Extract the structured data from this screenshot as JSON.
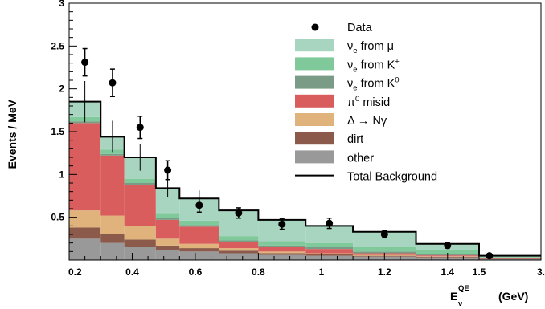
{
  "chart_data": {
    "type": "bar",
    "stacked": true,
    "xlabel": "E",
    "xlabel_sub": "ν",
    "xlabel_sup": "QE",
    "xlabel_unit": "(GeV)",
    "ylabel": "Events / MeV",
    "xlim": [
      0.2,
      3.0
    ],
    "ylim": [
      0,
      3
    ],
    "grid": false,
    "legend_position": "top-right",
    "bin_edges": [
      0.2,
      0.3,
      0.375,
      0.475,
      0.55,
      0.675,
      0.8,
      0.95,
      1.1,
      1.3,
      1.5,
      3.0
    ],
    "x_tick_values": [
      0.2,
      0.4,
      0.6,
      0.8,
      1.0,
      1.2,
      1.4,
      1.5,
      3.0
    ],
    "x_tick_labels": [
      "0.2",
      "0.4",
      "0.6",
      "0.8",
      "1",
      "1.2",
      "1.4",
      "1.5",
      "3."
    ],
    "y_tick_values": [
      0.5,
      1,
      1.5,
      2,
      2.5,
      3
    ],
    "y_tick_labels": [
      "0.5",
      "1",
      "1.5",
      "2",
      "2.5",
      "3"
    ],
    "series": [
      {
        "name": "other",
        "color": "#999999",
        "values": [
          0.25,
          0.2,
          0.15,
          0.12,
          0.1,
          0.08,
          0.06,
          0.05,
          0.04,
          0.03,
          0.01
        ]
      },
      {
        "name": "dirt",
        "color": "#8b5a4a",
        "values": [
          0.13,
          0.1,
          0.09,
          0.05,
          0.04,
          0.03,
          0.02,
          0.02,
          0.01,
          0.01,
          0.005
        ]
      },
      {
        "name": "Δ → Nγ",
        "color": "#e0b37c",
        "values": [
          0.2,
          0.22,
          0.16,
          0.08,
          0.05,
          0.03,
          0.02,
          0.01,
          0.01,
          0.005,
          0.0
        ]
      },
      {
        "name": "π0 misid",
        "color": "#d95d5d",
        "values": [
          1.02,
          0.7,
          0.48,
          0.22,
          0.2,
          0.07,
          0.05,
          0.05,
          0.02,
          0.01,
          0.005
        ]
      },
      {
        "name": "νe from K0",
        "color": "#7a9c86",
        "values": [
          0.02,
          0.02,
          0.02,
          0.02,
          0.02,
          0.02,
          0.02,
          0.02,
          0.02,
          0.02,
          0.005
        ]
      },
      {
        "name": "νe from K+",
        "color": "#7fc99a",
        "values": [
          0.05,
          0.05,
          0.05,
          0.05,
          0.05,
          0.05,
          0.05,
          0.05,
          0.05,
          0.04,
          0.01
        ]
      },
      {
        "name": "νe from μ",
        "color": "#a8d5c0",
        "values": [
          0.18,
          0.15,
          0.25,
          0.3,
          0.26,
          0.3,
          0.25,
          0.2,
          0.18,
          0.07,
          0.015
        ]
      }
    ],
    "total_background": [
      1.85,
      1.44,
      1.2,
      0.84,
      0.72,
      0.58,
      0.47,
      0.4,
      0.33,
      0.19,
      0.05
    ],
    "data_points": {
      "name": "Data",
      "x": [
        0.25,
        0.3375,
        0.425,
        0.5125,
        0.6125,
        0.7375,
        0.875,
        1.025,
        1.2,
        1.4,
        1.75
      ],
      "y": [
        2.31,
        2.07,
        1.55,
        1.05,
        0.64,
        0.55,
        0.42,
        0.43,
        0.3,
        0.17,
        0.05
      ],
      "err": [
        0.16,
        0.16,
        0.13,
        0.11,
        0.08,
        0.06,
        0.06,
        0.06,
        0.04,
        0.03,
        0.01
      ]
    },
    "legend": [
      {
        "key": "data",
        "text": "Data",
        "sub": "",
        "sup": "",
        "rest": ""
      },
      {
        "key": "numu",
        "text": "ν",
        "sub": "e",
        "sup": "",
        "rest": " from μ"
      },
      {
        "key": "kplus",
        "text": "ν",
        "sub": "e",
        "sup": "+",
        "rest": " from K"
      },
      {
        "key": "kzero",
        "text": "ν",
        "sub": "e",
        "sup": "0",
        "rest": " from K"
      },
      {
        "key": "pi0",
        "text": "π",
        "sub": "",
        "sup": "0",
        "rest": " misid"
      },
      {
        "key": "delta",
        "text": "Δ → Nγ",
        "sub": "",
        "sup": "",
        "rest": ""
      },
      {
        "key": "dirt",
        "text": "dirt",
        "sub": "",
        "sup": "",
        "rest": ""
      },
      {
        "key": "other",
        "text": "other",
        "sub": "",
        "sup": "",
        "rest": ""
      },
      {
        "key": "total",
        "text": "Total Background",
        "sub": "",
        "sup": "",
        "rest": ""
      }
    ]
  }
}
